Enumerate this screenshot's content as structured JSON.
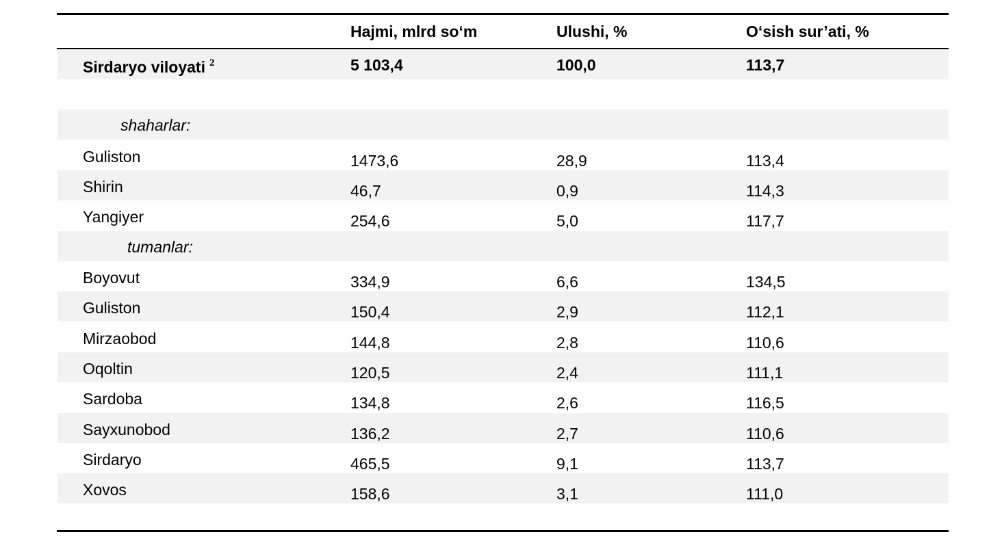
{
  "table": {
    "header": [
      "Hajmi, mlrd so‘m",
      "Ulushi, %",
      "O‘sish sur’ati, %"
    ],
    "total": {
      "name": "Sirdaryo viloyati",
      "note": "2",
      "cells": [
        "5 103,4",
        "100,0",
        "113,7"
      ]
    },
    "groups": [
      {
        "label": "shaharlar:",
        "rows": [
          {
            "name": "Guliston",
            "cells": [
              "1473,6",
              "28,9",
              "113,4"
            ]
          },
          {
            "name": "Shirin",
            "cells": [
              "46,7",
              "0,9",
              "114,3"
            ]
          },
          {
            "name": "Yangiyer",
            "cells": [
              "254,6",
              "5,0",
              "117,7"
            ]
          }
        ]
      },
      {
        "label": "tumanlar:",
        "rows": [
          {
            "name": "Boyovut",
            "cells": [
              "334,9",
              "6,6",
              "134,5"
            ]
          },
          {
            "name": "Guliston",
            "cells": [
              "150,4",
              "2,9",
              "112,1"
            ]
          },
          {
            "name": "Mirzaobod",
            "cells": [
              "144,8",
              "2,8",
              "110,6"
            ]
          },
          {
            "name": "Oqoltin",
            "cells": [
              "120,5",
              "2,4",
              "111,1"
            ]
          },
          {
            "name": "Sardoba",
            "cells": [
              "134,8",
              "2,6",
              "116,5"
            ]
          },
          {
            "name": "Sayxunobod",
            "cells": [
              "136,2",
              "2,7",
              "110,6"
            ]
          },
          {
            "name": "Sirdaryo",
            "cells": [
              "465,5",
              "9,1",
              "113,7"
            ]
          },
          {
            "name": "Xovos",
            "cells": [
              "158,6",
              "3,1",
              "111,0"
            ]
          }
        ]
      }
    ]
  }
}
